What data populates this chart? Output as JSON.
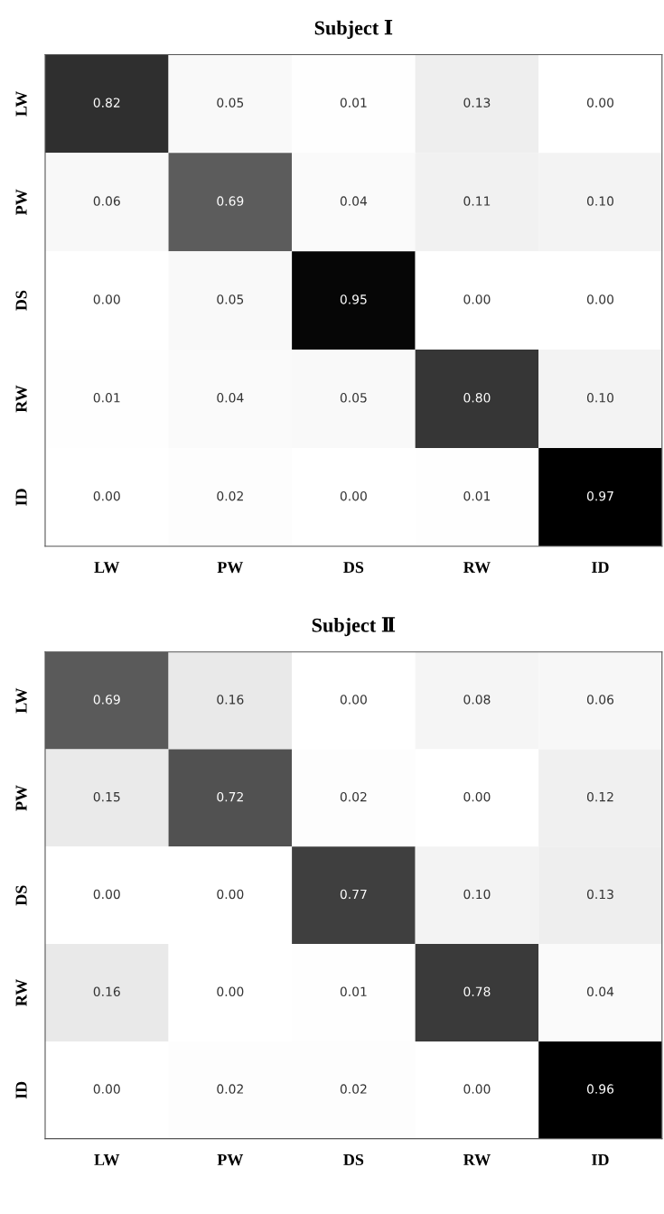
{
  "chart_data": [
    {
      "type": "heatmap",
      "title": "Subject Ⅰ",
      "categories": [
        "LW",
        "PW",
        "DS",
        "RW",
        "ID"
      ],
      "y_categories": [
        "LW",
        "PW",
        "DS",
        "RW",
        "ID"
      ],
      "cells": [
        [
          0.82,
          0.05,
          0.01,
          0.13,
          0.0
        ],
        [
          0.06,
          0.69,
          0.04,
          0.11,
          0.1
        ],
        [
          0.0,
          0.05,
          0.95,
          0.0,
          0.0
        ],
        [
          0.01,
          0.04,
          0.05,
          0.8,
          0.1
        ],
        [
          0.0,
          0.02,
          0.0,
          0.01,
          0.97
        ]
      ],
      "cell_labels": [
        [
          "0.82",
          "0.05",
          "0.01",
          "0.13",
          "0.00"
        ],
        [
          "0.06",
          "0.69",
          "0.04",
          "0.11",
          "0.10"
        ],
        [
          "0.00",
          "0.05",
          "0.95",
          "0.00",
          "0.00"
        ],
        [
          "0.01",
          "0.04",
          "0.05",
          "0.80",
          "0.10"
        ],
        [
          "0.00",
          "0.02",
          "0.00",
          "0.01",
          "0.97"
        ]
      ]
    },
    {
      "type": "heatmap",
      "title": "Subject Ⅱ",
      "categories": [
        "LW",
        "PW",
        "DS",
        "RW",
        "ID"
      ],
      "y_categories": [
        "LW",
        "PW",
        "DS",
        "RW",
        "ID"
      ],
      "cells": [
        [
          0.69,
          0.16,
          0.0,
          0.08,
          0.06
        ],
        [
          0.15,
          0.72,
          0.02,
          0.0,
          0.12
        ],
        [
          0.0,
          0.0,
          0.77,
          0.1,
          0.13
        ],
        [
          0.16,
          0.0,
          0.01,
          0.78,
          0.04
        ],
        [
          0.0,
          0.02,
          0.02,
          0.0,
          0.96
        ]
      ],
      "cell_labels": [
        [
          "0.69",
          "0.16",
          "0.00",
          "0.08",
          "0.06"
        ],
        [
          "0.15",
          "0.72",
          "0.02",
          "0.00",
          "0.12"
        ],
        [
          "0.00",
          "0.00",
          "0.77",
          "0.10",
          "0.13"
        ],
        [
          "0.16",
          "0.00",
          "0.01",
          "0.78",
          "0.04"
        ],
        [
          "0.00",
          "0.02",
          "0.02",
          "0.00",
          "0.96"
        ]
      ]
    }
  ]
}
